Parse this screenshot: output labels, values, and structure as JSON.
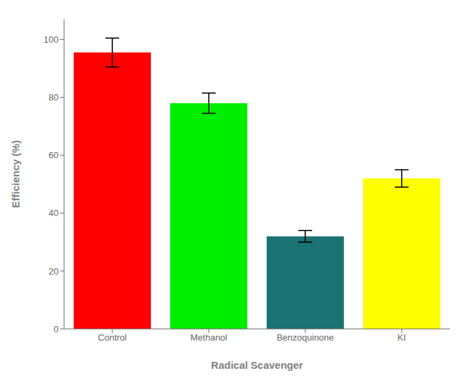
{
  "chart_data": {
    "type": "bar",
    "categories": [
      "Control",
      "Methanol",
      "Benzoquinone",
      "KI"
    ],
    "values": [
      95.5,
      78.0,
      32.0,
      52.0
    ],
    "errors": [
      5.0,
      3.5,
      2.0,
      3.0
    ],
    "colors": [
      "#ff0000",
      "#00ee00",
      "#1a7272",
      "#ffff00"
    ],
    "xlabel": "Radical Scavenger",
    "ylabel": "Efficiency (%)",
    "ylim": [
      0,
      107
    ],
    "yticks": [
      0,
      20,
      40,
      60,
      80,
      100
    ],
    "grid": false
  }
}
